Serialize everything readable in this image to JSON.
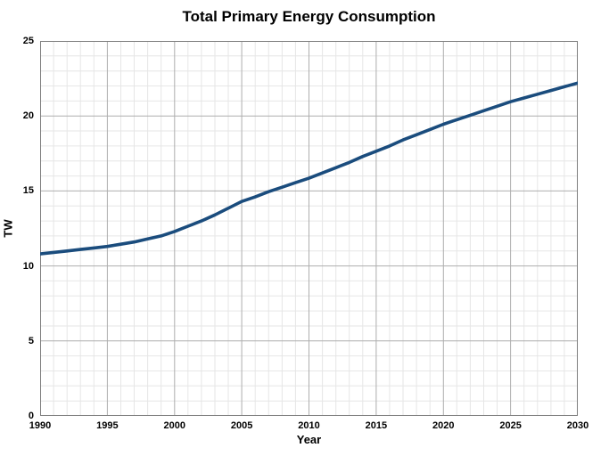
{
  "title": "Total Primary Energy Consumption",
  "colors": {
    "line": "#1a4c7d",
    "grid_minor": "#e6e6e6",
    "grid_major": "#aeaeae",
    "plot_border": "#7f7f7f",
    "text": "#000000",
    "background": "#ffffff"
  },
  "chart_data": {
    "type": "line",
    "title": "Total Primary Energy Consumption",
    "xlabel": "Year",
    "ylabel": "TW",
    "xlim": [
      1990,
      2030
    ],
    "ylim": [
      0,
      25
    ],
    "x_major_ticks": [
      1990,
      1995,
      2000,
      2005,
      2010,
      2015,
      2020,
      2025,
      2030
    ],
    "y_major_ticks": [
      0,
      5,
      10,
      15,
      20,
      25
    ],
    "x_minor_step": 1,
    "y_minor_step": 1,
    "grid": "major+minor",
    "legend_position": "none",
    "series": [
      {
        "name": "Total Primary Energy Consumption",
        "color": "#1a4c7d",
        "x": [
          1990,
          1991,
          1992,
          1993,
          1994,
          1995,
          1996,
          1997,
          1998,
          1999,
          2000,
          2001,
          2002,
          2003,
          2004,
          2005,
          2006,
          2007,
          2008,
          2009,
          2010,
          2011,
          2012,
          2013,
          2014,
          2015,
          2016,
          2017,
          2018,
          2019,
          2020,
          2021,
          2022,
          2023,
          2024,
          2025,
          2026,
          2027,
          2028,
          2029,
          2030
        ],
        "y": [
          10.8,
          10.9,
          11.0,
          11.1,
          11.2,
          11.3,
          11.45,
          11.6,
          11.8,
          12.0,
          12.3,
          12.65,
          13.0,
          13.4,
          13.85,
          14.3,
          14.6,
          14.95,
          15.25,
          15.55,
          15.85,
          16.2,
          16.55,
          16.9,
          17.3,
          17.65,
          18.0,
          18.4,
          18.75,
          19.1,
          19.45,
          19.75,
          20.05,
          20.35,
          20.65,
          20.95,
          21.2,
          21.45,
          21.7,
          21.95,
          22.2
        ]
      }
    ]
  }
}
